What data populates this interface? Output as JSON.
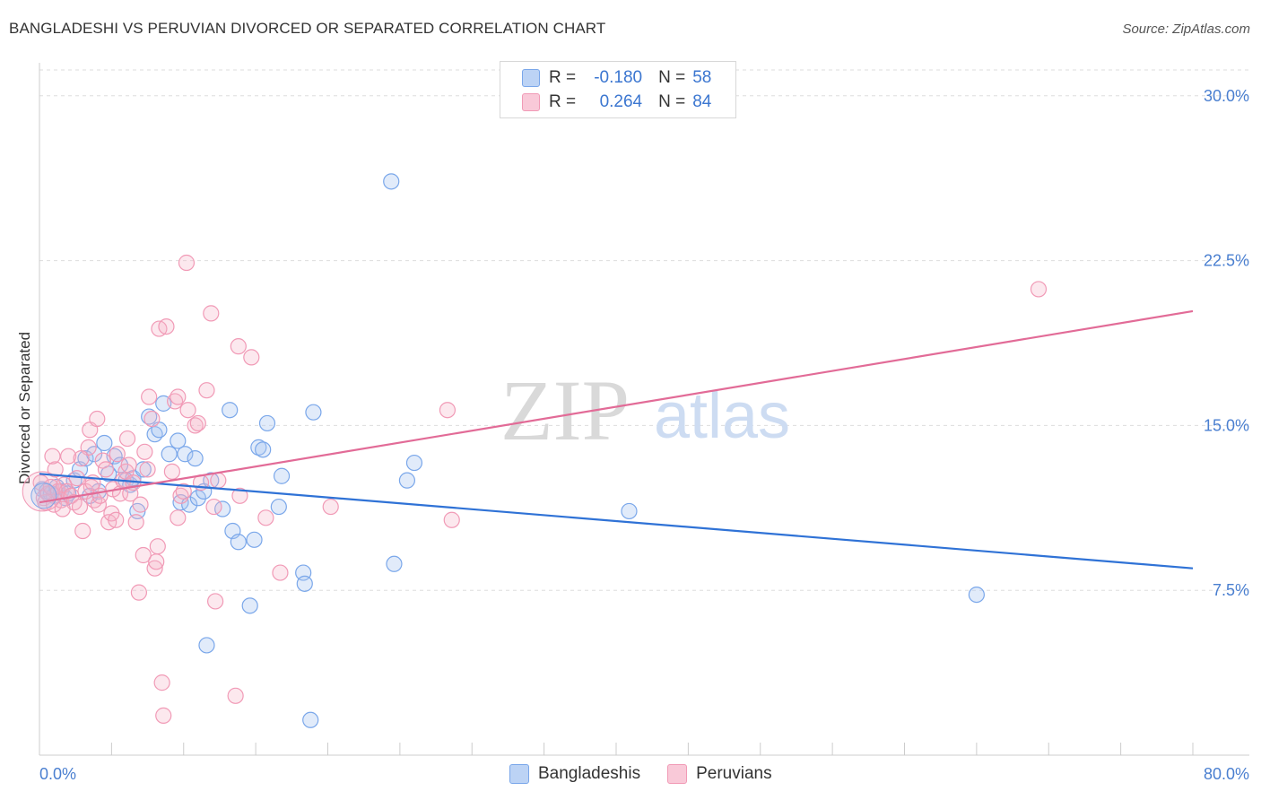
{
  "title": "BANGLADESHI VS PERUVIAN DIVORCED OR SEPARATED CORRELATION CHART",
  "source": "Source: ZipAtlas.com",
  "watermark": {
    "zip": "ZIP",
    "atlas": "atlas"
  },
  "legend": {
    "rows": [
      {
        "r_label": "R =",
        "r_value": "-0.180",
        "n_label": "N =",
        "n_value": "58",
        "color": "#7aa7ea"
      },
      {
        "r_label": "R =",
        "r_value": "0.264",
        "n_label": "N =",
        "n_value": "84",
        "color": "#f19ab6"
      }
    ]
  },
  "bottom_legend": {
    "items": [
      {
        "label": "Bangladeshis",
        "color": "#7aa7ea"
      },
      {
        "label": "Peruvians",
        "color": "#f19ab6"
      }
    ]
  },
  "chart_data": {
    "type": "scatter",
    "title": "BANGLADESHI VS PERUVIAN DIVORCED OR SEPARATED CORRELATION CHART",
    "xlabel": "",
    "ylabel": "Divorced or Separated",
    "xlim": [
      0,
      80
    ],
    "ylim": [
      0,
      31.5
    ],
    "x_tick_labels": [
      "0.0%",
      "80.0%"
    ],
    "y_ticks": [
      7.5,
      15.0,
      22.5,
      30.0
    ],
    "y_tick_labels": [
      "7.5%",
      "15.0%",
      "22.5%",
      "30.0%"
    ],
    "grid": true,
    "series": [
      {
        "name": "Bangladeshis",
        "color": "#5b8fe0",
        "trend": {
          "x": [
            0,
            80
          ],
          "y": [
            12.8,
            8.5
          ]
        },
        "points": [
          [
            0.2,
            12.1
          ],
          [
            0.5,
            12.0
          ],
          [
            0.8,
            11.9
          ],
          [
            1.0,
            11.8
          ],
          [
            1.2,
            12.2
          ],
          [
            1.5,
            12.0
          ],
          [
            1.8,
            11.7
          ],
          [
            2.0,
            11.9
          ],
          [
            2.4,
            12.5
          ],
          [
            2.8,
            13.0
          ],
          [
            3.2,
            13.5
          ],
          [
            3.5,
            11.8
          ],
          [
            3.8,
            13.7
          ],
          [
            4.1,
            12.0
          ],
          [
            4.5,
            14.2
          ],
          [
            4.8,
            12.8
          ],
          [
            5.2,
            13.6
          ],
          [
            5.6,
            13.2
          ],
          [
            6.0,
            12.5
          ],
          [
            6.3,
            12.3
          ],
          [
            6.5,
            12.6
          ],
          [
            6.8,
            11.1
          ],
          [
            7.2,
            13.0
          ],
          [
            7.6,
            15.4
          ],
          [
            8.0,
            14.6
          ],
          [
            8.3,
            14.8
          ],
          [
            8.6,
            16.0
          ],
          [
            9.0,
            13.7
          ],
          [
            9.6,
            14.3
          ],
          [
            9.8,
            11.5
          ],
          [
            10.1,
            13.7
          ],
          [
            10.4,
            11.4
          ],
          [
            10.8,
            13.5
          ],
          [
            11.0,
            11.7
          ],
          [
            11.4,
            12.0
          ],
          [
            11.6,
            5.0
          ],
          [
            11.9,
            12.5
          ],
          [
            12.7,
            11.2
          ],
          [
            13.2,
            15.7
          ],
          [
            13.4,
            10.2
          ],
          [
            13.8,
            9.7
          ],
          [
            14.9,
            9.8
          ],
          [
            15.2,
            14.0
          ],
          [
            15.5,
            13.9
          ],
          [
            15.8,
            15.1
          ],
          [
            16.6,
            11.3
          ],
          [
            16.8,
            12.7
          ],
          [
            18.3,
            8.3
          ],
          [
            18.4,
            7.8
          ],
          [
            18.8,
            1.6
          ],
          [
            19.0,
            15.6
          ],
          [
            24.4,
            26.1
          ],
          [
            24.6,
            8.7
          ],
          [
            25.5,
            12.5
          ],
          [
            26.0,
            13.3
          ],
          [
            40.9,
            11.1
          ],
          [
            65.0,
            7.3
          ],
          [
            14.6,
            6.8
          ]
        ]
      },
      {
        "name": "Peruvians",
        "color": "#f08fb0",
        "trend": {
          "x": [
            0,
            80
          ],
          "y": [
            11.5,
            20.2
          ]
        },
        "points": [
          [
            0.1,
            12.4
          ],
          [
            0.3,
            11.7
          ],
          [
            0.4,
            11.5
          ],
          [
            0.6,
            11.9
          ],
          [
            0.8,
            12.2
          ],
          [
            1.0,
            11.4
          ],
          [
            1.1,
            13.0
          ],
          [
            1.3,
            12.0
          ],
          [
            1.5,
            11.6
          ],
          [
            1.7,
            12.3
          ],
          [
            1.9,
            12.0
          ],
          [
            2.0,
            13.6
          ],
          [
            2.2,
            11.8
          ],
          [
            2.4,
            11.5
          ],
          [
            2.6,
            12.6
          ],
          [
            2.8,
            11.3
          ],
          [
            3.0,
            10.2
          ],
          [
            3.2,
            12.0
          ],
          [
            3.4,
            14.0
          ],
          [
            3.5,
            14.8
          ],
          [
            3.6,
            12.2
          ],
          [
            3.8,
            11.6
          ],
          [
            4.0,
            15.3
          ],
          [
            4.1,
            11.4
          ],
          [
            4.2,
            11.8
          ],
          [
            4.4,
            13.4
          ],
          [
            4.6,
            13.0
          ],
          [
            4.8,
            10.6
          ],
          [
            5.0,
            11.0
          ],
          [
            5.1,
            12.1
          ],
          [
            5.3,
            10.7
          ],
          [
            5.4,
            13.7
          ],
          [
            5.6,
            11.9
          ],
          [
            5.8,
            12.5
          ],
          [
            6.0,
            12.9
          ],
          [
            6.1,
            14.4
          ],
          [
            6.2,
            13.2
          ],
          [
            6.3,
            11.9
          ],
          [
            6.5,
            12.4
          ],
          [
            6.7,
            10.6
          ],
          [
            6.9,
            7.4
          ],
          [
            7.0,
            11.4
          ],
          [
            7.2,
            9.1
          ],
          [
            7.3,
            13.8
          ],
          [
            7.5,
            13.0
          ],
          [
            7.6,
            16.3
          ],
          [
            7.8,
            15.3
          ],
          [
            8.0,
            8.5
          ],
          [
            8.1,
            8.8
          ],
          [
            8.2,
            9.5
          ],
          [
            8.3,
            19.4
          ],
          [
            8.5,
            3.3
          ],
          [
            8.6,
            1.8
          ],
          [
            8.8,
            19.5
          ],
          [
            9.2,
            12.9
          ],
          [
            9.4,
            16.1
          ],
          [
            9.6,
            10.8
          ],
          [
            9.8,
            11.8
          ],
          [
            10.0,
            12.0
          ],
          [
            10.2,
            22.4
          ],
          [
            10.3,
            15.7
          ],
          [
            10.8,
            15.0
          ],
          [
            11.0,
            15.1
          ],
          [
            11.2,
            12.4
          ],
          [
            11.6,
            16.6
          ],
          [
            11.9,
            20.1
          ],
          [
            12.1,
            11.3
          ],
          [
            12.2,
            7.0
          ],
          [
            12.4,
            12.5
          ],
          [
            13.6,
            2.7
          ],
          [
            13.8,
            18.6
          ],
          [
            13.9,
            11.8
          ],
          [
            14.7,
            18.1
          ],
          [
            15.7,
            10.8
          ],
          [
            16.7,
            8.3
          ],
          [
            20.2,
            11.3
          ],
          [
            28.3,
            15.7
          ],
          [
            28.6,
            10.7
          ],
          [
            69.3,
            21.2
          ],
          [
            9.6,
            16.3
          ],
          [
            2.9,
            13.5
          ],
          [
            3.7,
            12.4
          ],
          [
            0.9,
            13.6
          ],
          [
            1.6,
            11.2
          ]
        ]
      }
    ]
  }
}
